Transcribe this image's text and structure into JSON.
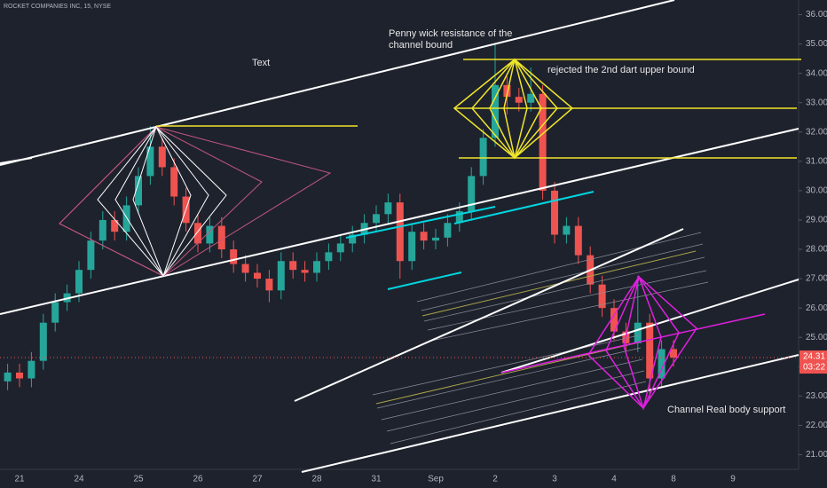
{
  "chart_data": {
    "type": "candlestick",
    "title": "ROCKET COMPANIES INC, 15, NYSE",
    "categories": [
      null,
      "21",
      null,
      null,
      null,
      null,
      "24",
      null,
      null,
      null,
      null,
      "25",
      null,
      null,
      null,
      null,
      "26",
      null,
      null,
      null,
      null,
      "27",
      null,
      null,
      null,
      null,
      "28",
      null,
      null,
      null,
      null,
      "31",
      null,
      null,
      null,
      null,
      "Sep",
      null,
      null,
      null,
      null,
      "2",
      null,
      null,
      null,
      null,
      "3",
      null,
      null,
      null,
      null,
      "4",
      null,
      null,
      null,
      null,
      "8",
      null,
      null,
      null,
      null,
      "9"
    ],
    "open": [
      23.5,
      23.8,
      23.6,
      24.2,
      25.5,
      26.2,
      26.5,
      27.3,
      28.3,
      29.0,
      28.6,
      29.5,
      30.5,
      31.5,
      30.8,
      29.8,
      28.9,
      28.2,
      28.8,
      28.0,
      27.5,
      27.2,
      27.0,
      26.6,
      27.6,
      27.3,
      27.2,
      27.6,
      27.9,
      28.2,
      28.5,
      28.9,
      29.2,
      29.6,
      27.6,
      28.6,
      28.3,
      28.4,
      28.9,
      29.3,
      30.5,
      31.8,
      33.6,
      33.2,
      33.0,
      33.3,
      30.0,
      28.5,
      28.8,
      27.8,
      26.8,
      26.0,
      25.2,
      24.8,
      25.5,
      23.6,
      24.6,
      null,
      null,
      null,
      null,
      null
    ],
    "high": [
      24.1,
      24.1,
      24.5,
      25.8,
      26.5,
      26.8,
      27.6,
      28.6,
      29.3,
      29.3,
      29.8,
      30.8,
      32.2,
      31.8,
      31.1,
      30.1,
      29.2,
      29.1,
      29.1,
      28.3,
      27.8,
      27.5,
      27.3,
      27.9,
      27.9,
      27.6,
      27.9,
      28.2,
      28.5,
      28.8,
      29.2,
      29.5,
      29.9,
      29.9,
      28.9,
      28.9,
      28.7,
      29.2,
      29.6,
      30.8,
      32.1,
      35.0,
      33.9,
      33.5,
      34.2,
      33.6,
      30.3,
      29.1,
      29.1,
      28.1,
      27.1,
      26.3,
      25.5,
      27.1,
      25.8,
      24.9,
      24.9,
      null,
      null,
      null,
      null,
      null
    ],
    "low": [
      23.2,
      23.3,
      23.3,
      23.9,
      25.2,
      25.9,
      26.2,
      27.0,
      28.0,
      28.3,
      28.3,
      29.2,
      30.2,
      30.5,
      29.5,
      28.6,
      27.9,
      27.9,
      27.7,
      27.2,
      26.9,
      26.7,
      26.2,
      26.3,
      27.0,
      26.9,
      26.9,
      27.3,
      27.6,
      27.9,
      28.2,
      28.6,
      28.9,
      27.0,
      27.3,
      28.0,
      28.0,
      28.1,
      28.6,
      29.0,
      30.2,
      31.5,
      32.6,
      32.7,
      32.7,
      29.7,
      28.2,
      28.2,
      27.5,
      26.5,
      25.7,
      24.9,
      24.5,
      24.5,
      22.9,
      23.3,
      24.0,
      null,
      null,
      null,
      null,
      null
    ],
    "close": [
      23.8,
      23.6,
      24.2,
      25.5,
      26.2,
      26.5,
      27.3,
      28.3,
      29.0,
      28.6,
      29.5,
      30.5,
      31.5,
      30.8,
      29.8,
      28.9,
      28.2,
      28.8,
      28.0,
      27.5,
      27.2,
      27.0,
      26.6,
      27.6,
      27.3,
      27.2,
      27.6,
      27.9,
      28.2,
      28.5,
      28.9,
      29.2,
      29.6,
      27.6,
      28.6,
      28.3,
      28.4,
      28.9,
      29.3,
      30.5,
      31.8,
      33.6,
      33.2,
      33.0,
      33.3,
      30.0,
      28.5,
      28.8,
      27.8,
      26.8,
      26.0,
      25.2,
      24.8,
      25.5,
      23.6,
      24.6,
      24.31,
      null,
      null,
      null,
      null,
      null
    ],
    "up_color": "#26a69a",
    "down_color": "#ef5350",
    "ylim": [
      20.5,
      36.5
    ],
    "yticks": [
      {
        "value": 21,
        "label": "21.00"
      },
      {
        "value": 22,
        "label": "22.00"
      },
      {
        "value": 23,
        "label": "23.00"
      },
      {
        "value": 24,
        "label": "24.00"
      },
      {
        "value": 25,
        "label": "25.00"
      },
      {
        "value": 26,
        "label": "26.00"
      },
      {
        "value": 27,
        "label": "27.00"
      },
      {
        "value": 28,
        "label": "28.00"
      },
      {
        "value": 29,
        "label": "29.00"
      },
      {
        "value": 30,
        "label": "30.00"
      },
      {
        "value": 31,
        "label": "31.00"
      },
      {
        "value": 32,
        "label": "32.00"
      },
      {
        "value": 33,
        "label": "33.00"
      },
      {
        "value": 34,
        "label": "34.00"
      },
      {
        "value": 35,
        "label": "35.00"
      },
      {
        "value": 36,
        "label": "36.00"
      }
    ],
    "last_price": {
      "value": 24.31,
      "label": "24.31"
    },
    "countdown": "03:22",
    "annotations": [
      "Text",
      "Penny wick resistance of the channel bound",
      "rejected the 2nd dart upper bound",
      "Channel Real body support"
    ]
  }
}
